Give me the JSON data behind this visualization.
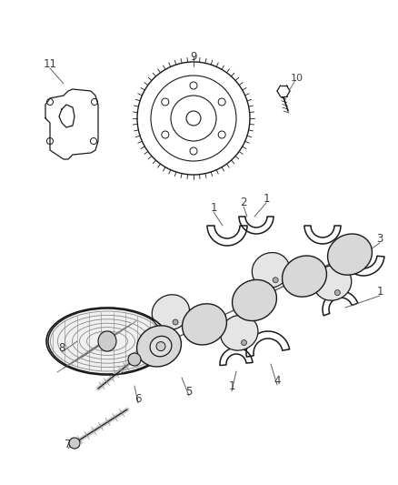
{
  "bg_color": "#ffffff",
  "lc": "#1a1a1a",
  "figsize": [
    4.38,
    5.33
  ],
  "dpi": 100
}
